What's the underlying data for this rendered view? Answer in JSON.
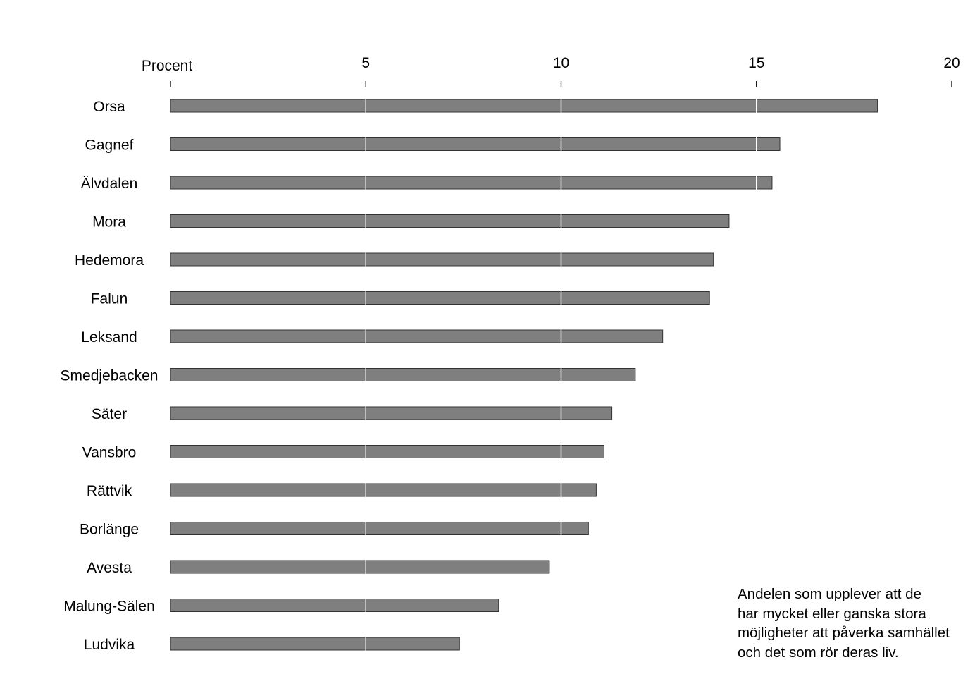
{
  "chart_data": {
    "type": "bar",
    "orientation": "horizontal",
    "axis_unit_label": "Procent",
    "categories": [
      "Orsa",
      "Gagnef",
      "Älvdalen",
      "Mora",
      "Hedemora",
      "Falun",
      "Leksand",
      "Smedjebacken",
      "Säter",
      "Vansbro",
      "Rättvik",
      "Borlänge",
      "Avesta",
      "Malung-Sälen",
      "Ludvika"
    ],
    "values": [
      18.1,
      15.6,
      15.4,
      14.3,
      13.9,
      13.8,
      12.6,
      11.9,
      11.3,
      11.1,
      10.9,
      10.7,
      9.7,
      8.4,
      7.4
    ],
    "xticks": [
      5,
      10,
      15,
      20
    ],
    "xlim": [
      0,
      20
    ],
    "grid": true,
    "legend": "none",
    "bar_color": "#7f7f7f",
    "annotation": "Andelen som upplever att de\nhar mycket eller ganska stora\nmöjligheter att påverka samhället\noch det som rör deras liv."
  }
}
